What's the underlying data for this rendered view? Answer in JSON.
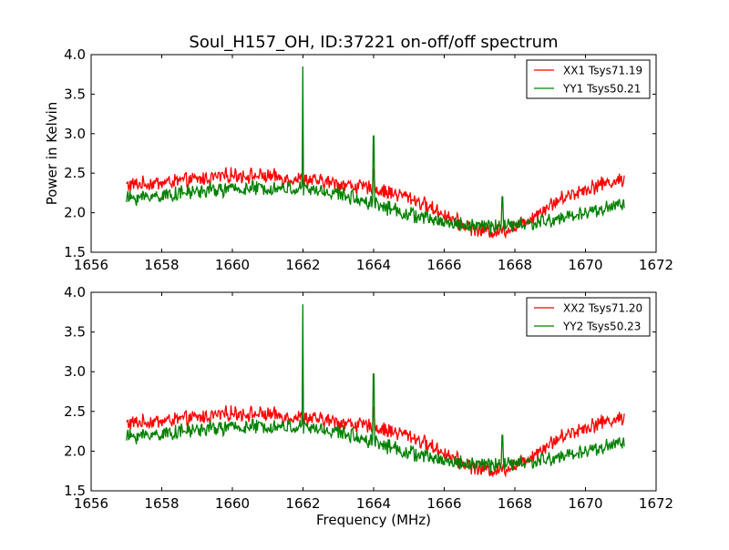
{
  "figure": {
    "title": "Soul_H157_OH, ID:37221 on-off/off spectrum",
    "xlabel": "Frequency (MHz)",
    "ylabel": "Power in Kelvin"
  },
  "chart_data": [
    {
      "type": "line",
      "title": "Soul_H157_OH, ID:37221 on-off/off spectrum",
      "xlabel": "",
      "ylabel": "Power in Kelvin",
      "xlim": [
        1656,
        1672
      ],
      "ylim": [
        1.5,
        4.0
      ],
      "xticks": [
        1656,
        1658,
        1660,
        1662,
        1664,
        1666,
        1668,
        1670,
        1672
      ],
      "yticks": [
        1.5,
        2.0,
        2.5,
        3.0,
        3.5,
        4.0
      ],
      "grid": false,
      "legend_position": "top-right",
      "x_range": [
        1657.0,
        1671.1
      ],
      "series": [
        {
          "name": "XX1 Tsys71.19",
          "color": "#ff0000",
          "x": [
            1657.0,
            1658.0,
            1659.0,
            1660.0,
            1661.0,
            1662.0,
            1663.0,
            1664.0,
            1665.0,
            1666.0,
            1666.5,
            1667.0,
            1667.5,
            1668.0,
            1668.5,
            1669.0,
            1669.5,
            1670.0,
            1670.5,
            1671.1
          ],
          "values": [
            2.35,
            2.38,
            2.42,
            2.48,
            2.46,
            2.42,
            2.37,
            2.3,
            2.2,
            1.98,
            1.85,
            1.78,
            1.76,
            1.82,
            1.95,
            2.1,
            2.22,
            2.3,
            2.37,
            2.42
          ],
          "spikes": [
            {
              "x": 1664.0,
              "y": 2.55
            }
          ]
        },
        {
          "name": "YY1 Tsys50.21",
          "color": "#008000",
          "x": [
            1657.0,
            1658.0,
            1659.0,
            1660.0,
            1661.0,
            1662.0,
            1663.0,
            1664.0,
            1665.0,
            1666.0,
            1666.5,
            1667.0,
            1667.5,
            1668.0,
            1668.5,
            1669.0,
            1669.5,
            1670.0,
            1670.5,
            1671.1
          ],
          "values": [
            2.18,
            2.22,
            2.27,
            2.3,
            2.31,
            2.3,
            2.24,
            2.12,
            1.98,
            1.88,
            1.85,
            1.83,
            1.83,
            1.84,
            1.86,
            1.9,
            1.95,
            2.0,
            2.05,
            2.12
          ],
          "spikes": [
            {
              "x": 1662.0,
              "y": 3.85
            },
            {
              "x": 1664.0,
              "y": 2.97
            },
            {
              "x": 1667.65,
              "y": 2.2
            }
          ]
        }
      ]
    },
    {
      "type": "line",
      "title": "",
      "xlabel": "Frequency (MHz)",
      "ylabel": "",
      "xlim": [
        1656,
        1672
      ],
      "ylim": [
        1.5,
        4.0
      ],
      "xticks": [
        1656,
        1658,
        1660,
        1662,
        1664,
        1666,
        1668,
        1670,
        1672
      ],
      "yticks": [
        1.5,
        2.0,
        2.5,
        3.0,
        3.5,
        4.0
      ],
      "grid": false,
      "legend_position": "top-right",
      "x_range": [
        1657.0,
        1671.1
      ],
      "series": [
        {
          "name": "XX2 Tsys71.20",
          "color": "#ff0000",
          "x": [
            1657.0,
            1658.0,
            1659.0,
            1660.0,
            1661.0,
            1662.0,
            1663.0,
            1664.0,
            1665.0,
            1666.0,
            1666.5,
            1667.0,
            1667.5,
            1668.0,
            1668.5,
            1669.0,
            1669.5,
            1670.0,
            1670.5,
            1671.1
          ],
          "values": [
            2.35,
            2.38,
            2.42,
            2.48,
            2.46,
            2.42,
            2.37,
            2.3,
            2.2,
            1.98,
            1.85,
            1.78,
            1.76,
            1.82,
            1.95,
            2.1,
            2.22,
            2.3,
            2.37,
            2.42
          ],
          "spikes": [
            {
              "x": 1664.0,
              "y": 2.55
            }
          ]
        },
        {
          "name": "YY2 Tsys50.23",
          "color": "#008000",
          "x": [
            1657.0,
            1658.0,
            1659.0,
            1660.0,
            1661.0,
            1662.0,
            1663.0,
            1664.0,
            1665.0,
            1666.0,
            1666.5,
            1667.0,
            1667.5,
            1668.0,
            1668.5,
            1669.0,
            1669.5,
            1670.0,
            1670.5,
            1671.1
          ],
          "values": [
            2.18,
            2.22,
            2.27,
            2.3,
            2.31,
            2.3,
            2.24,
            2.12,
            1.98,
            1.88,
            1.85,
            1.83,
            1.83,
            1.84,
            1.86,
            1.9,
            1.95,
            2.0,
            2.05,
            2.12
          ],
          "spikes": [
            {
              "x": 1662.0,
              "y": 3.85
            },
            {
              "x": 1664.0,
              "y": 2.97
            },
            {
              "x": 1667.65,
              "y": 2.2
            }
          ]
        }
      ]
    }
  ]
}
